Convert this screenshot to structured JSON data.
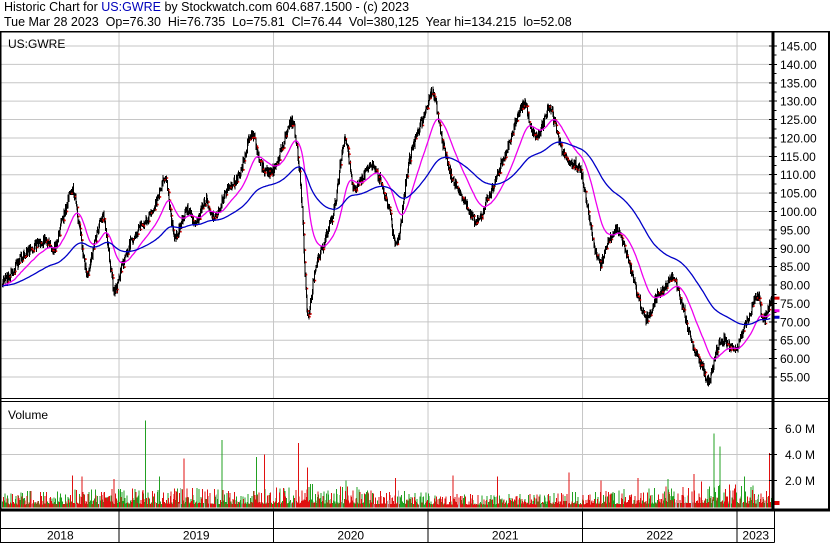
{
  "header": {
    "line1_prefix": "Historic Chart for ",
    "symbol": "US:GWRE",
    "line1_suffix": " by Stockwatch.com 604.687.1500 - (c) 2023",
    "line2": "Tue Mar 28 2023  Op=76.30  Hi=76.735  Lo=75.81  Cl=76.44  Vol=380,125  Year hi=134.215  lo=52.08"
  },
  "price_panel": {
    "label": "US:GWRE"
  },
  "volume_panel": {
    "label": "Volume"
  },
  "chart_data": {
    "type": "candlestick",
    "title": "US:GWRE daily historic chart with volume, Mar 2018 - Mar 28 2023",
    "legend_position": "none",
    "grid": true,
    "x_axis": {
      "year_labels": [
        "2018",
        "2019",
        "2020",
        "2021",
        "2022",
        "2023"
      ],
      "year_boundaries": [
        2019,
        2020,
        2021,
        2022,
        2023
      ],
      "domain_years": [
        2018.24,
        2023.245
      ]
    },
    "price_axis": {
      "tick_labels": [
        "145.00",
        "140.00",
        "135.00",
        "130.00",
        "125.00",
        "120.00",
        "115.00",
        "110.00",
        "105.00",
        "100.00",
        "95.00",
        "90.00",
        "85.00",
        "80.00",
        "75.00",
        "70.00",
        "65.00",
        "60.00",
        "55.00"
      ],
      "tick_values": [
        145,
        140,
        135,
        130,
        125,
        120,
        115,
        110,
        105,
        100,
        95,
        90,
        85,
        80,
        75,
        70,
        65,
        60,
        55
      ],
      "minor_tick_step": 2.5,
      "ylim": [
        49,
        148
      ]
    },
    "volume_axis": {
      "tick_labels": [
        "6.0 M",
        "4.0 M",
        "2.0 M"
      ],
      "tick_values": [
        6,
        4,
        2
      ],
      "unit": "millions of shares",
      "ylim": [
        0,
        7.9
      ]
    },
    "last_quote": {
      "date": "Tue Mar 28 2023",
      "open": 76.3,
      "high": 76.735,
      "low": 75.81,
      "close": 76.44,
      "volume": 380125,
      "year_high": 134.215,
      "year_low": 52.08
    },
    "price_monthly_anchors": [
      [
        2018.24,
        80.5
      ],
      [
        2018.3,
        83
      ],
      [
        2018.37,
        87.5
      ],
      [
        2018.45,
        90.5
      ],
      [
        2018.52,
        92
      ],
      [
        2018.58,
        90
      ],
      [
        2018.63,
        97
      ],
      [
        2018.7,
        105.5
      ],
      [
        2018.74,
        97
      ],
      [
        2018.79,
        83.5
      ],
      [
        2018.85,
        93
      ],
      [
        2018.9,
        98.5
      ],
      [
        2018.93,
        90
      ],
      [
        2018.97,
        78.5
      ],
      [
        2019.02,
        85
      ],
      [
        2019.08,
        92
      ],
      [
        2019.16,
        96.5
      ],
      [
        2019.24,
        102
      ],
      [
        2019.3,
        108.5
      ],
      [
        2019.36,
        93.5
      ],
      [
        2019.44,
        100.5
      ],
      [
        2019.5,
        97
      ],
      [
        2019.56,
        103
      ],
      [
        2019.62,
        98.5
      ],
      [
        2019.7,
        106
      ],
      [
        2019.78,
        110
      ],
      [
        2019.86,
        121
      ],
      [
        2019.91,
        114
      ],
      [
        2019.97,
        110.5
      ],
      [
        2020.03,
        114
      ],
      [
        2020.09,
        122
      ],
      [
        2020.13,
        123.5
      ],
      [
        2020.18,
        105
      ],
      [
        2020.22,
        73
      ],
      [
        2020.27,
        84
      ],
      [
        2020.33,
        92
      ],
      [
        2020.4,
        102
      ],
      [
        2020.46,
        119.5
      ],
      [
        2020.52,
        106
      ],
      [
        2020.58,
        109.5
      ],
      [
        2020.64,
        112.5
      ],
      [
        2020.7,
        107.5
      ],
      [
        2020.75,
        100
      ],
      [
        2020.8,
        91
      ],
      [
        2020.87,
        112
      ],
      [
        2020.93,
        121
      ],
      [
        2020.99,
        128
      ],
      [
        2021.03,
        133
      ],
      [
        2021.09,
        120
      ],
      [
        2021.15,
        110
      ],
      [
        2021.21,
        105
      ],
      [
        2021.27,
        100
      ],
      [
        2021.32,
        97
      ],
      [
        2021.39,
        104
      ],
      [
        2021.46,
        111
      ],
      [
        2021.53,
        119
      ],
      [
        2021.58,
        126
      ],
      [
        2021.63,
        129
      ],
      [
        2021.69,
        120
      ],
      [
        2021.74,
        123.5
      ],
      [
        2021.79,
        128
      ],
      [
        2021.85,
        119
      ],
      [
        2021.92,
        113.5
      ],
      [
        2021.99,
        110.5
      ],
      [
        2022.05,
        97
      ],
      [
        2022.11,
        86
      ],
      [
        2022.17,
        92
      ],
      [
        2022.23,
        95
      ],
      [
        2022.29,
        88
      ],
      [
        2022.35,
        78.5
      ],
      [
        2022.41,
        71
      ],
      [
        2022.47,
        76
      ],
      [
        2022.53,
        79
      ],
      [
        2022.59,
        82
      ],
      [
        2022.65,
        73.5
      ],
      [
        2022.71,
        64
      ],
      [
        2022.77,
        58.5
      ],
      [
        2022.82,
        54
      ],
      [
        2022.87,
        62.5
      ],
      [
        2022.93,
        65
      ],
      [
        2022.99,
        62
      ],
      [
        2023.04,
        67.5
      ],
      [
        2023.09,
        73
      ],
      [
        2023.13,
        77.5
      ],
      [
        2023.17,
        70.5
      ],
      [
        2023.21,
        74.5
      ],
      [
        2023.245,
        76.44
      ]
    ],
    "ma_fast": {
      "name": "fast moving average",
      "color": "#ee00ee",
      "ema_days": 42
    },
    "ma_slow": {
      "name": "slow moving average",
      "color": "#0000c8",
      "ema_days": 160
    },
    "volume_base_anchors": [
      [
        2018.24,
        0.6
      ],
      [
        2018.8,
        0.75
      ],
      [
        2019.2,
        0.8
      ],
      [
        2019.9,
        0.75
      ],
      [
        2020.25,
        0.95
      ],
      [
        2020.8,
        0.7
      ],
      [
        2021.3,
        0.55
      ],
      [
        2021.9,
        0.6
      ],
      [
        2022.3,
        0.8
      ],
      [
        2022.75,
        1.05
      ],
      [
        2023.0,
        0.95
      ],
      [
        2023.245,
        1.0
      ]
    ],
    "volume_spikes": [
      [
        2018.7,
        2.4,
        "down"
      ],
      [
        2018.76,
        2.3,
        "down"
      ],
      [
        2018.97,
        2.1,
        "down"
      ],
      [
        2019.17,
        6.6,
        "up"
      ],
      [
        2019.26,
        2.3,
        "up"
      ],
      [
        2019.42,
        3.7,
        "down"
      ],
      [
        2019.67,
        5.1,
        "up"
      ],
      [
        2019.89,
        3.8,
        "up"
      ],
      [
        2019.94,
        4.0,
        "down"
      ],
      [
        2020.16,
        4.9,
        "down"
      ],
      [
        2020.22,
        3.0,
        "down"
      ],
      [
        2020.47,
        2.0,
        "up"
      ],
      [
        2020.79,
        2.2,
        "down"
      ],
      [
        2021.16,
        2.4,
        "down"
      ],
      [
        2021.45,
        2.3,
        "down"
      ],
      [
        2021.91,
        2.6,
        "down"
      ],
      [
        2022.12,
        2.0,
        "down"
      ],
      [
        2022.36,
        2.2,
        "down"
      ],
      [
        2022.55,
        2.1,
        "up"
      ],
      [
        2022.72,
        2.5,
        "down"
      ],
      [
        2022.85,
        5.6,
        "up"
      ],
      [
        2022.89,
        4.6,
        "up"
      ],
      [
        2023.05,
        2.3,
        "up"
      ],
      [
        2023.21,
        4.1,
        "down"
      ]
    ],
    "colors": {
      "price_bar": "#000000",
      "close_tick": "#e00000",
      "ma_fast": "#ee00ee",
      "ma_slow": "#0000c8",
      "volume_up": "#22a022",
      "volume_down": "#e01010",
      "volume_neutral": "#b0b0b0",
      "grid": "#c6c6c6",
      "frame": "#000000",
      "symbol_text": "#0000bb",
      "background": "#ffffff"
    }
  }
}
